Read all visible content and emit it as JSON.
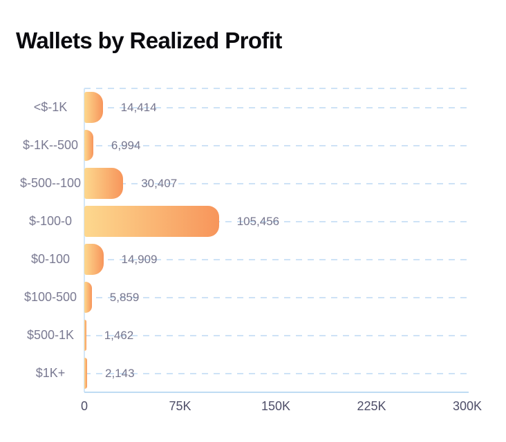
{
  "title": "Wallets by Realized Profit",
  "chart_data": {
    "type": "bar",
    "orientation": "horizontal",
    "title": "Wallets by Realized Profit",
    "categories": [
      "<$-1K",
      "$-1K--500",
      "$-500--100",
      "$-100-0",
      "$0-100",
      "$100-500",
      "$500-1K",
      "$1K+"
    ],
    "values": [
      14414,
      6994,
      30407,
      105456,
      14909,
      5859,
      1462,
      2143
    ],
    "value_labels": [
      "14,414",
      "6,994",
      "30,407",
      "105,456",
      "14,909",
      "5,859",
      "1,462",
      "2,143"
    ],
    "x_ticks": [
      "0",
      "75K",
      "150K",
      "225K",
      "300K"
    ],
    "x_tick_values": [
      0,
      75000,
      150000,
      225000,
      300000
    ],
    "xlim": [
      0,
      300000
    ],
    "xlabel": "",
    "ylabel": "",
    "grid": "dashed horizontal lines per category row plus top boundary",
    "legend": "none"
  },
  "colors": {
    "background": "#FFFFFF",
    "title_text": "#0A0A0E",
    "bar_gradient_start": "#FDD88E",
    "bar_gradient_end": "#F7955B",
    "gridline_dashed": "#CDE2F6",
    "axis_line": "#BEDBF3",
    "axis_line_vertical": "#D3E6F8",
    "category_label_text": "#7A7A92",
    "value_label_text": "#76768E",
    "tick_label_text": "#4E4E68"
  }
}
